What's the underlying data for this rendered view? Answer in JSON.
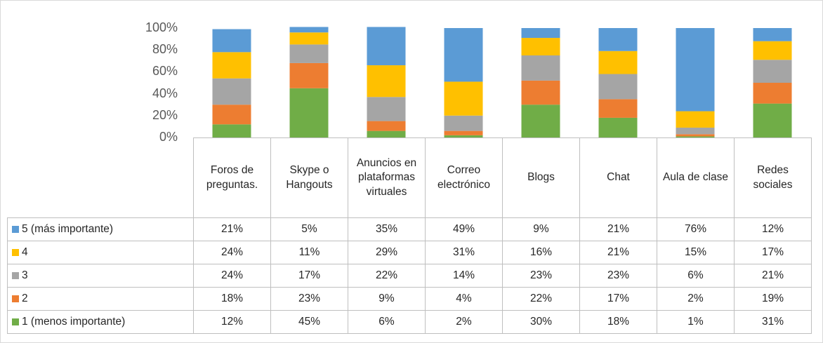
{
  "chart_data": {
    "type": "stacked_bar",
    "categories": [
      "Foros de preguntas.",
      "Skype o Hangouts",
      "Anuncios en plataformas virtuales",
      "Correo electrónico",
      "Blogs",
      "Chat",
      "Aula de clase",
      "Redes sociales"
    ],
    "series": [
      {
        "name": "5 (más importante)",
        "color": "#5b9bd5",
        "values": [
          21,
          5,
          35,
          49,
          9,
          21,
          76,
          12
        ],
        "value_labels": [
          "21%",
          "5%",
          "35%",
          "49%",
          "9%",
          "21%",
          "76%",
          "12%"
        ]
      },
      {
        "name": "4",
        "color": "#ffc000",
        "values": [
          24,
          11,
          29,
          31,
          16,
          21,
          15,
          17
        ],
        "value_labels": [
          "24%",
          "11%",
          "29%",
          "31%",
          "16%",
          "21%",
          "15%",
          "17%"
        ]
      },
      {
        "name": "3",
        "color": "#a5a5a5",
        "values": [
          24,
          17,
          22,
          14,
          23,
          23,
          6,
          21
        ],
        "value_labels": [
          "24%",
          "17%",
          "22%",
          "14%",
          "23%",
          "23%",
          "6%",
          "21%"
        ]
      },
      {
        "name": "2",
        "color": "#ed7d31",
        "values": [
          18,
          23,
          9,
          4,
          22,
          17,
          2,
          19
        ],
        "value_labels": [
          "18%",
          "23%",
          "9%",
          "4%",
          "22%",
          "17%",
          "2%",
          "19%"
        ]
      },
      {
        "name": "1 (menos importante)",
        "color": "#70ad47",
        "values": [
          12,
          45,
          6,
          2,
          30,
          18,
          1,
          31
        ],
        "value_labels": [
          "12%",
          "45%",
          "6%",
          "2%",
          "30%",
          "18%",
          "1%",
          "31%"
        ]
      }
    ],
    "ylim": [
      0,
      100
    ],
    "yticks": [
      {
        "value": 0,
        "label": "0%"
      },
      {
        "value": 20,
        "label": "20%"
      },
      {
        "value": 40,
        "label": "40%"
      },
      {
        "value": 60,
        "label": "60%"
      },
      {
        "value": 80,
        "label": "80%"
      },
      {
        "value": 100,
        "label": "100%"
      }
    ],
    "grid": false
  }
}
